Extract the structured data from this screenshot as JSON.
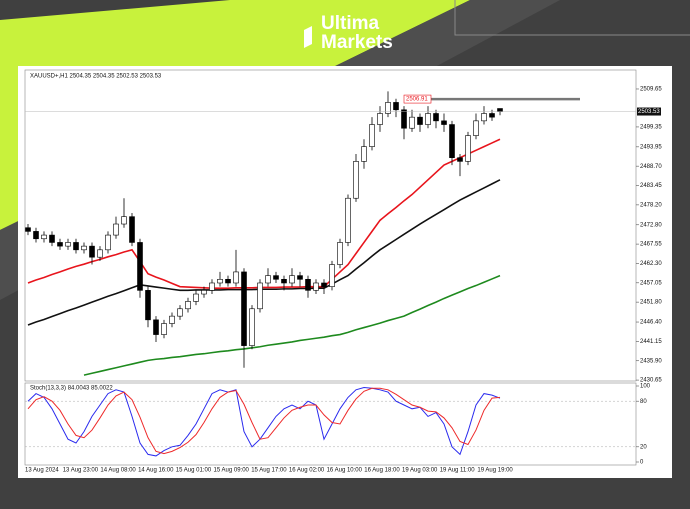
{
  "brand": {
    "line1": "Ultima",
    "line2": "Markets"
  },
  "chart_data": [
    {
      "type": "candlestick",
      "title": "XAUUSD+,H1 2504.35 2504.35 2502.53 2503.53",
      "up_color": "#ffffff",
      "down_color": "#000000",
      "open": [
        2472,
        2471,
        2469,
        2470,
        2468,
        2467,
        2468,
        2466,
        2467,
        2464,
        2466,
        2470,
        2473,
        2475,
        2468,
        2455,
        2447,
        2443,
        2446,
        2448,
        2450,
        2452,
        2454,
        2455,
        2457,
        2458,
        2457,
        2460,
        2440,
        2450,
        2457,
        2459,
        2458,
        2457,
        2459,
        2458,
        2455,
        2457,
        2456,
        2462,
        2468,
        2480,
        2490,
        2494,
        2500,
        2503,
        2506,
        2504,
        2499,
        2502,
        2500,
        2503,
        2501,
        2500,
        2491,
        2490,
        2497,
        2501,
        2503,
        2504.35
      ],
      "high": [
        2473,
        2472,
        2471,
        2471,
        2469,
        2469,
        2469,
        2468,
        2468,
        2467,
        2471,
        2475,
        2480,
        2476,
        2469,
        2456,
        2448,
        2447,
        2449,
        2451,
        2453,
        2455,
        2456,
        2458,
        2460,
        2459,
        2466,
        2461,
        2451,
        2458,
        2461,
        2460,
        2459,
        2461,
        2460,
        2459,
        2458,
        2458,
        2463,
        2469,
        2481,
        2492,
        2496,
        2502,
        2505,
        2509,
        2507,
        2505,
        2504,
        2503,
        2505,
        2504,
        2503,
        2501,
        2492,
        2498,
        2503,
        2505,
        2504,
        2504.35
      ],
      "low": [
        2470,
        2468,
        2468,
        2467,
        2466,
        2466,
        2465,
        2465,
        2462,
        2463,
        2465,
        2469,
        2472,
        2467,
        2453,
        2445,
        2441,
        2442,
        2445,
        2447,
        2449,
        2451,
        2453,
        2454,
        2456,
        2456,
        2456,
        2434,
        2439,
        2449,
        2456,
        2457,
        2455,
        2456,
        2456,
        2453,
        2454,
        2454,
        2455,
        2461,
        2467,
        2479,
        2488,
        2493,
        2498,
        2502,
        2502,
        2496,
        2498,
        2498,
        2499,
        2499,
        2498,
        2489,
        2486,
        2489,
        2496,
        2500,
        2501,
        2502.53
      ],
      "close": [
        2471,
        2469,
        2470,
        2468,
        2467,
        2468,
        2466,
        2467,
        2464,
        2466,
        2470,
        2473,
        2475,
        2468,
        2455,
        2447,
        2443,
        2446,
        2448,
        2450,
        2452,
        2454,
        2455,
        2457,
        2458,
        2457,
        2460,
        2440,
        2450,
        2457,
        2459,
        2458,
        2457,
        2459,
        2458,
        2455,
        2457,
        2456,
        2462,
        2468,
        2480,
        2490,
        2494,
        2500,
        2503,
        2506,
        2504,
        2499,
        2502,
        2500,
        2503,
        2501,
        2500,
        2491,
        2490,
        2497,
        2501,
        2503,
        2502,
        2503.53
      ],
      "series": [
        {
          "color": "#e8141c",
          "values": [
            2457,
            2457.8,
            2458.5,
            2459.3,
            2460,
            2460.8,
            2461.5,
            2462.1,
            2462.8,
            2463.4,
            2464.1,
            2464.7,
            2465.4,
            2466,
            2462.8,
            2459.5,
            2458.6,
            2457.8,
            2456.9,
            2456,
            2455.9,
            2455.8,
            2455.7,
            2455.6,
            2455.6,
            2455.6,
            2455.7,
            2455.7,
            2455.7,
            2455.8,
            2455.8,
            2455.8,
            2455.9,
            2455.9,
            2455.9,
            2456,
            2456,
            2456,
            2458,
            2460,
            2462,
            2465,
            2468,
            2471,
            2474,
            2475.8,
            2477.5,
            2479.3,
            2481,
            2483,
            2485,
            2487,
            2489,
            2490,
            2491,
            2492,
            2493,
            2494,
            2495,
            2496
          ]
        },
        {
          "color": "#111111",
          "values": [
            2445.6,
            2446.4,
            2447.1,
            2447.9,
            2448.7,
            2449.5,
            2450.2,
            2451,
            2451.8,
            2452.6,
            2453.4,
            2454.1,
            2454.9,
            2455.7,
            2456.5,
            2456.2,
            2455.9,
            2455.6,
            2455.3,
            2455,
            2455,
            2455.1,
            2455.1,
            2455.1,
            2455.1,
            2455.2,
            2455.2,
            2455.2,
            2455.2,
            2455.3,
            2455.3,
            2455.3,
            2455.4,
            2455.4,
            2455.5,
            2455.5,
            2455.6,
            2455.6,
            2456.7,
            2457.9,
            2459,
            2460.8,
            2462.5,
            2464.3,
            2466,
            2467.4,
            2468.8,
            2470.2,
            2471.6,
            2473,
            2474.3,
            2475.6,
            2476.9,
            2478.2,
            2479.5,
            2480.6,
            2481.7,
            2482.8,
            2483.9,
            2485
          ]
        },
        {
          "color": "#1e8a1e",
          "values": [
            null,
            null,
            null,
            null,
            null,
            null,
            null,
            2432,
            2432.5,
            2433,
            2433.5,
            2434,
            2434.5,
            2435,
            2435.5,
            2436,
            2436.3,
            2436.5,
            2436.8,
            2437,
            2437.3,
            2437.6,
            2437.8,
            2438.1,
            2438.4,
            2438.6,
            2438.9,
            2439.1,
            2439.4,
            2439.7,
            2440.1,
            2440.4,
            2440.7,
            2441,
            2441.4,
            2441.7,
            2442,
            2442.3,
            2442.7,
            2443,
            2443.6,
            2444.3,
            2444.9,
            2445.5,
            2446.1,
            2446.8,
            2447.4,
            2448,
            2449,
            2449.9,
            2450.9,
            2451.8,
            2452.8,
            2453.7,
            2454.6,
            2455.5,
            2456.3,
            2457.2,
            2458.1,
            2459
          ]
        }
      ],
      "resistance": {
        "value": 2506.91,
        "label": "2506.91",
        "color": "#e8141c"
      },
      "last_price": 2503.53,
      "ylim": [
        2430.4,
        2514.8
      ],
      "yticks": [
        {
          "value": 2430.65,
          "label": "2430.65"
        },
        {
          "value": 2435.9,
          "label": "2435.90"
        },
        2441.15,
        {
          "value": 2446.4,
          "label": "2446.40"
        },
        {
          "value": 2451.8,
          "label": "2451.80"
        },
        2457.05,
        {
          "value": 2462.3,
          "label": "2462.30"
        },
        {
          "value": 2467.55,
          "label": "2467.55"
        },
        {
          "value": 2472.8,
          "label": "2472.80"
        },
        {
          "value": 2478.2,
          "label": "2478.20"
        },
        2483.45,
        {
          "value": 2488.7,
          "label": "2488.70"
        },
        2493.95,
        2499.35,
        2509.65
      ],
      "x_labels": [
        "13 Aug 2024",
        "13 Aug 23:00",
        "14 Aug 08:00",
        "14 Aug 16:00",
        "15 Aug 01:00",
        "15 Aug 09:00",
        "15 Aug 17:00",
        "16 Aug 02:00",
        "16 Aug 10:00",
        "16 Aug 18:00",
        "19 Aug 03:00",
        "19 Aug 11:00",
        "19 Aug 19:00"
      ]
    },
    {
      "type": "line",
      "title": "Stoch(13,3,3) 84.0043 85.0022",
      "series": [
        {
          "color": "#2a2aee",
          "values": [
            80,
            90,
            85,
            70,
            50,
            30,
            25,
            40,
            60,
            75,
            90,
            95,
            92,
            60,
            25,
            10,
            8,
            15,
            20,
            22,
            35,
            50,
            70,
            90,
            95,
            92,
            95,
            40,
            20,
            30,
            45,
            60,
            70,
            75,
            70,
            80,
            75,
            30,
            50,
            70,
            85,
            95,
            98,
            97,
            95,
            92,
            80,
            75,
            70,
            72,
            60,
            65,
            50,
            20,
            10,
            40,
            75,
            90,
            88,
            84.0043
          ]
        },
        {
          "color": "#ee2a2a",
          "values": [
            70,
            82,
            86,
            80,
            68,
            50,
            35,
            32,
            42,
            58,
            75,
            87,
            92,
            82,
            59,
            32,
            14,
            11,
            14,
            19,
            26,
            36,
            52,
            70,
            85,
            92,
            94,
            76,
            52,
            30,
            32,
            45,
            58,
            68,
            72,
            75,
            75,
            62,
            52,
            50,
            68,
            83,
            93,
            97,
            97,
            95,
            89,
            82,
            75,
            72,
            67,
            66,
            58,
            45,
            27,
            23,
            42,
            68,
            84,
            85.0022
          ]
        }
      ],
      "ylim": [
        0,
        100
      ],
      "yticks": [
        0,
        20,
        80,
        100
      ]
    }
  ]
}
